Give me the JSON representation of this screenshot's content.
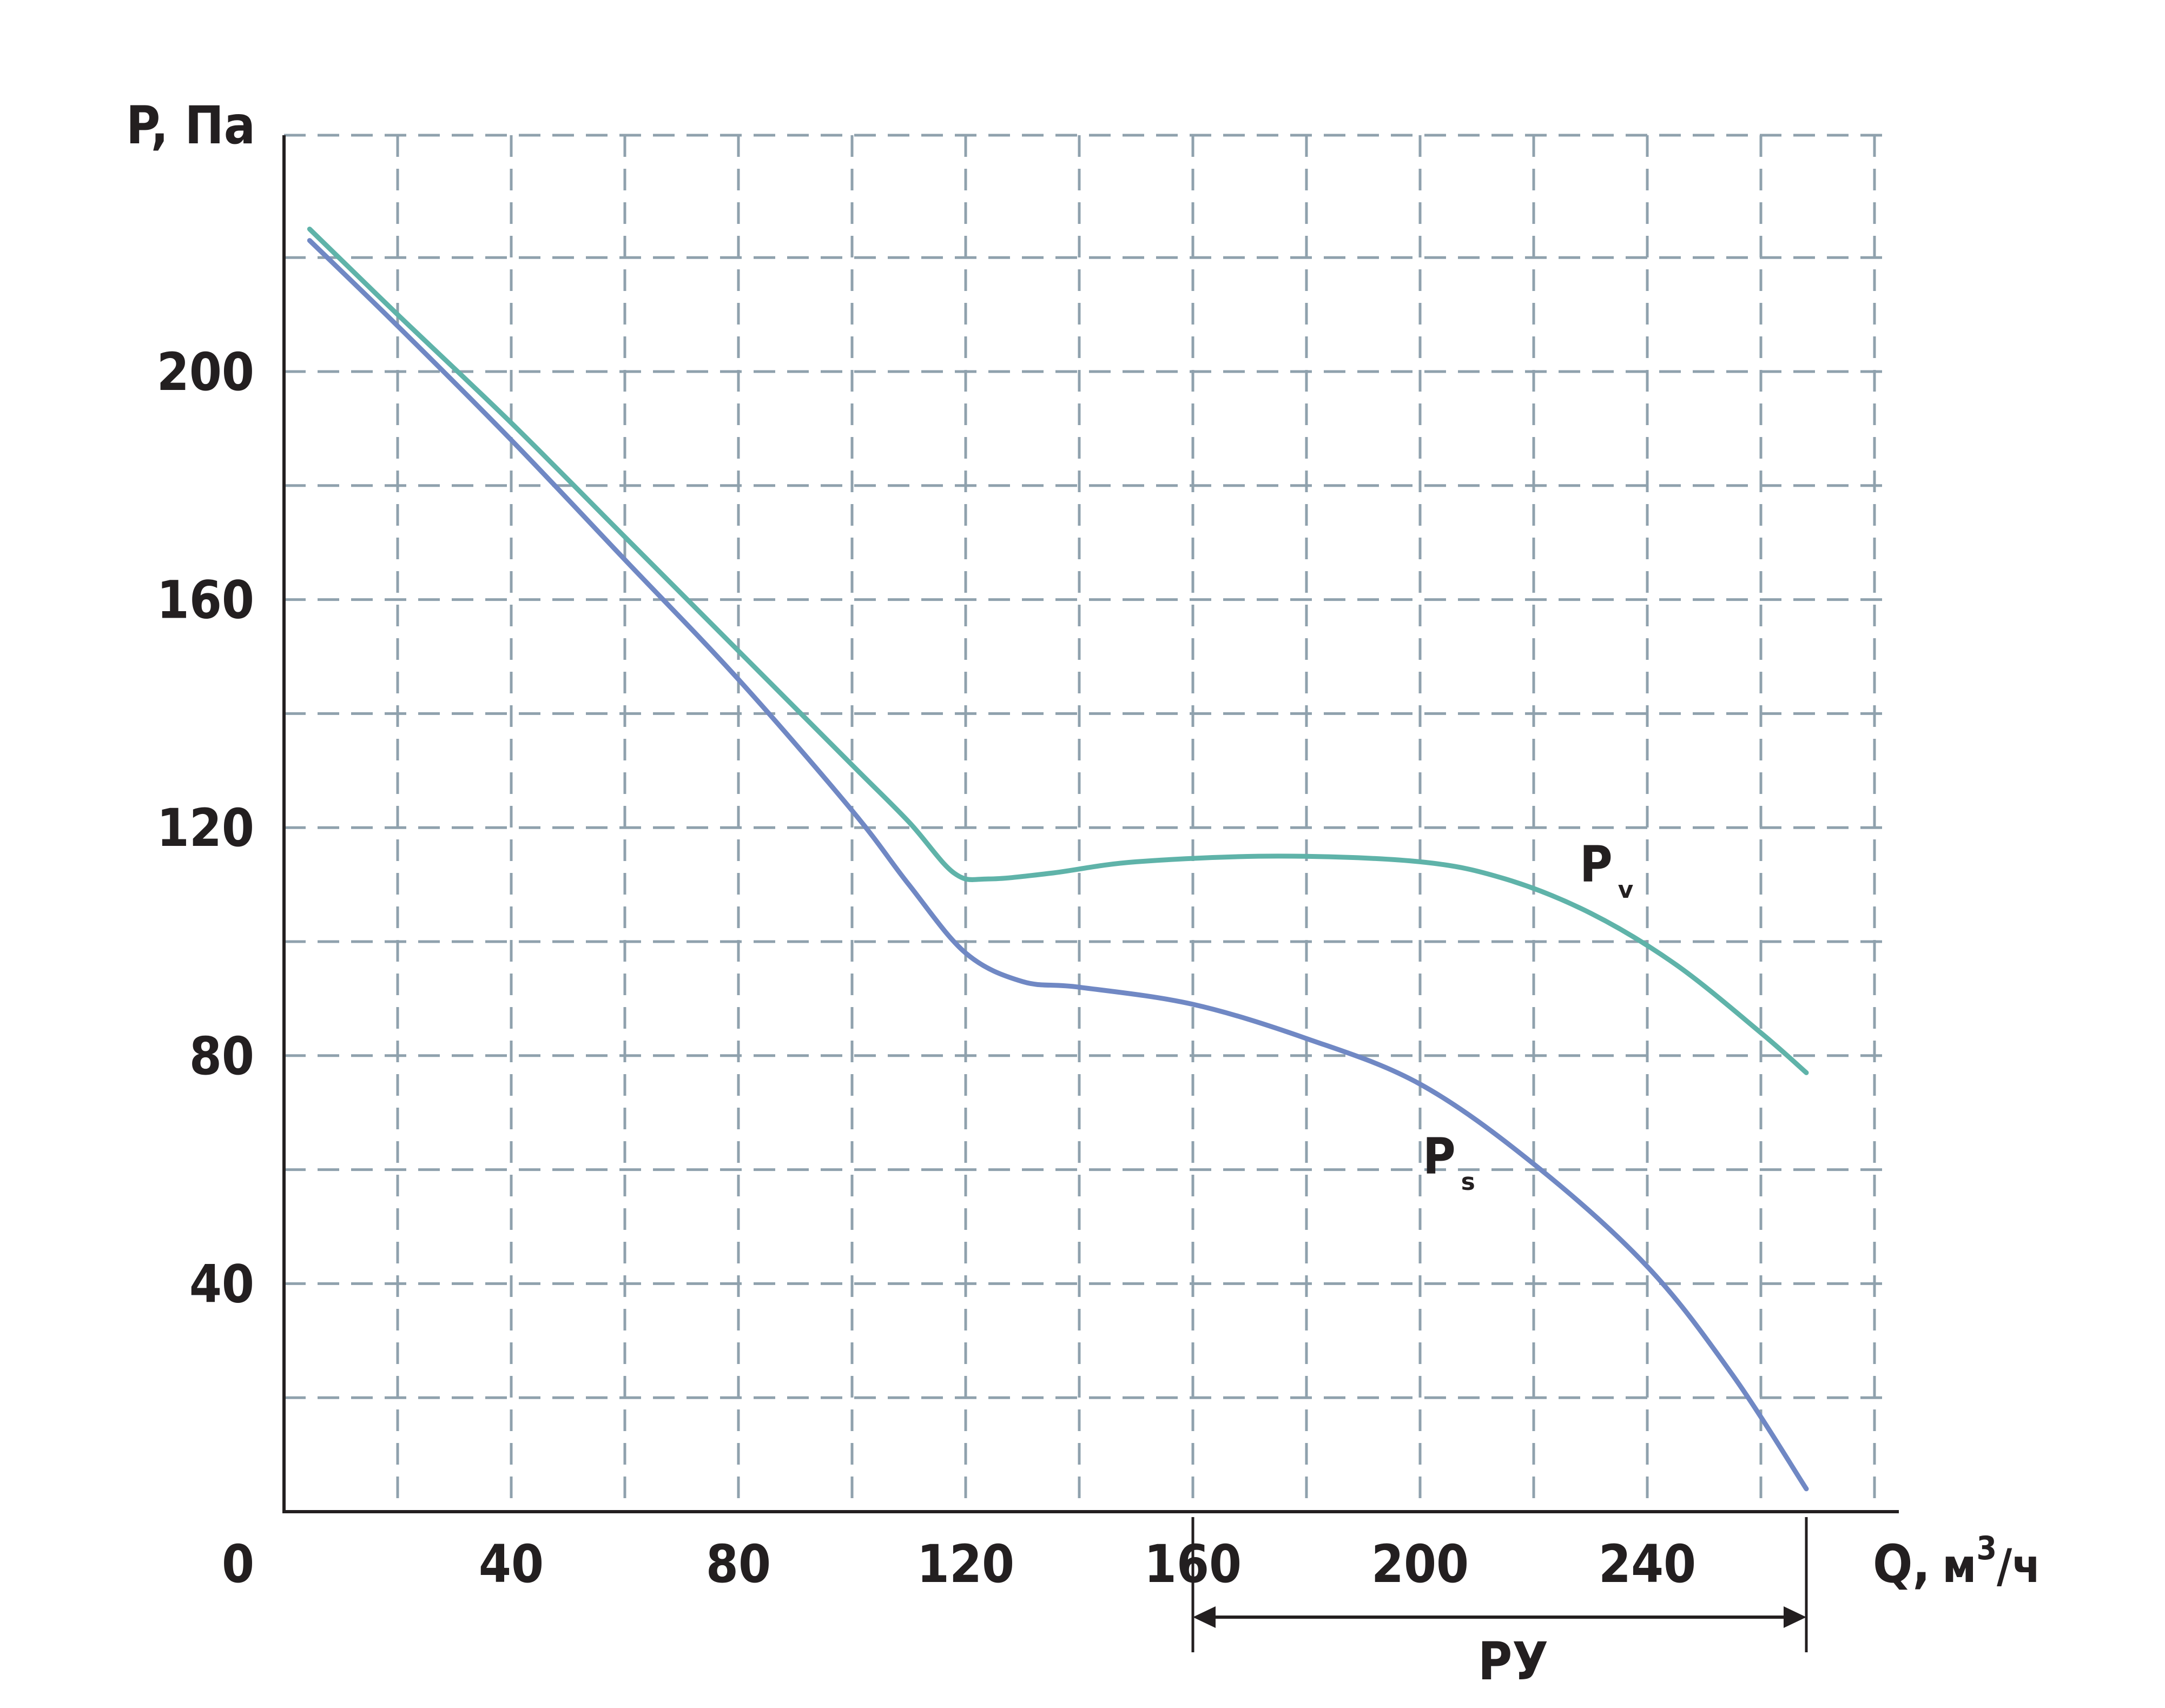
{
  "chart_data": {
    "type": "line",
    "xlabel": "Q,",
    "xunit": "м",
    "xunit_sup": "3",
    "xunit_tail": "/ч",
    "ylabel": "P, Па",
    "xlim": [
      0,
      280
    ],
    "ylim": [
      0,
      240
    ],
    "x_ticks": [
      0,
      40,
      80,
      120,
      160,
      200,
      240
    ],
    "x_tick_labels": [
      "0",
      "40",
      "80",
      "120",
      "160",
      "200",
      "240"
    ],
    "y_ticks": [
      40,
      80,
      120,
      160,
      200
    ],
    "y_tick_labels": [
      "40",
      "80",
      "120",
      "160",
      "200"
    ],
    "grid": true,
    "grid_step_x": 20,
    "grid_step_y": 20,
    "series": [
      {
        "name": "Pv",
        "label_main": "P",
        "label_sub": "v",
        "color": "#5fb3a9",
        "x": [
          4.5,
          20,
          40,
          60,
          80,
          100,
          110,
          118,
          124,
          135,
          150,
          175,
          200,
          215,
          230,
          245,
          260,
          268
        ],
        "y": [
          225,
          210,
          191,
          171,
          151,
          131,
          121,
          112,
          111,
          112,
          114,
          115,
          114,
          111,
          105,
          96,
          84,
          77
        ]
      },
      {
        "name": "Ps",
        "label_main": "P",
        "label_sub": "s",
        "color": "#7088c4",
        "x": [
          4.5,
          20,
          40,
          60,
          80,
          100,
          110,
          120,
          130,
          140,
          160,
          180,
          200,
          220,
          240,
          255,
          268
        ],
        "y": [
          223,
          208,
          188,
          167,
          146,
          123,
          110,
          98,
          93,
          92,
          89,
          83,
          75,
          61,
          43,
          24,
          4
        ]
      }
    ],
    "range_annotation": {
      "label": "РУ",
      "from": 160,
      "to": 268
    }
  }
}
